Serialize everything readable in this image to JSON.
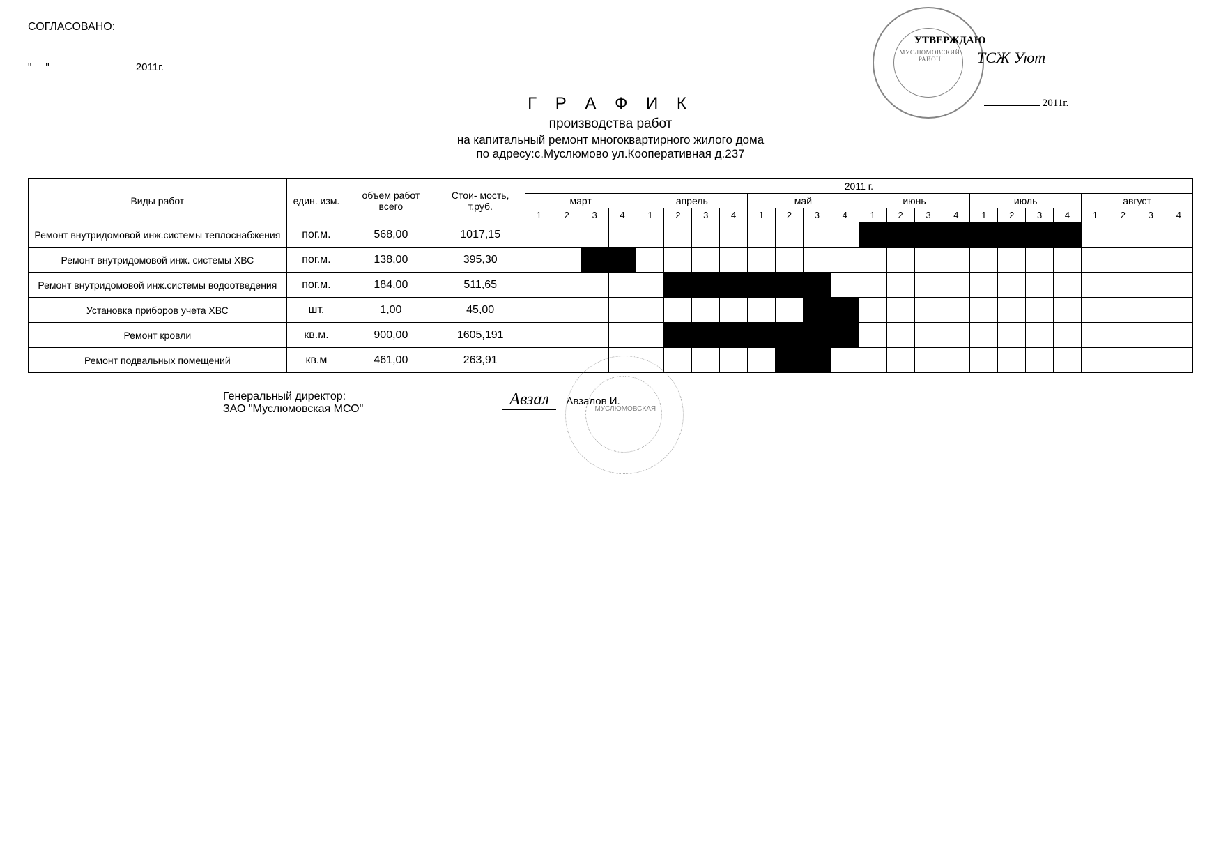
{
  "header": {
    "agree_label": "СОГЛАСОВАНО:",
    "year_suffix": "2011г.",
    "approve_label": "УТВЕРЖДАЮ",
    "stamp_top_text": "МУСЛЮМОВСКИЙ РАЙОН",
    "signature_scribble": "ТСЖ Уют",
    "approve_year": "2011г."
  },
  "title": {
    "main": "Г Р А Ф И К",
    "sub": "производства работ",
    "line1": "на капитальный ремонт многоквартирного жилого дома",
    "line2": "по адресу:с.Муслюмово ул.Кооперативная д.237"
  },
  "table": {
    "col_work": "Виды работ",
    "col_unit": "един. изм.",
    "col_vol": "объем работ всего",
    "col_cost": "Стои-\nмость, т.руб.",
    "year_header": "2011 г.",
    "months": [
      "март",
      "апрель",
      "май",
      "июнь",
      "июль",
      "август"
    ],
    "weeks": [
      "1",
      "2",
      "3",
      "4"
    ],
    "rows": [
      {
        "name": "Ремонт внутридомовой инж.системы теплоснабжения",
        "unit": "пог.м.",
        "vol": "568,00",
        "cost": "1017,15",
        "fill": [
          0,
          0,
          0,
          0,
          0,
          0,
          0,
          0,
          0,
          0,
          0,
          0,
          1,
          1,
          1,
          1,
          1,
          1,
          1,
          1,
          0,
          0,
          0,
          0
        ]
      },
      {
        "name": "Ремонт внутридомовой инж. системы ХВС",
        "unit": "пог.м.",
        "vol": "138,00",
        "cost": "395,30",
        "fill": [
          0,
          0,
          1,
          1,
          0,
          0,
          0,
          0,
          0,
          0,
          0,
          0,
          0,
          0,
          0,
          0,
          0,
          0,
          0,
          0,
          0,
          0,
          0,
          0
        ]
      },
      {
        "name": "Ремонт внутридомовой инж.системы водоотведения",
        "unit": "пог.м.",
        "vol": "184,00",
        "cost": "511,65",
        "fill": [
          0,
          0,
          0,
          0,
          0,
          1,
          1,
          1,
          1,
          1,
          1,
          0,
          0,
          0,
          0,
          0,
          0,
          0,
          0,
          0,
          0,
          0,
          0,
          0
        ]
      },
      {
        "name": "Установка приборов учета ХВС",
        "unit": "шт.",
        "vol": "1,00",
        "cost": "45,00",
        "fill": [
          0,
          0,
          0,
          0,
          0,
          0,
          0,
          0,
          0,
          0,
          1,
          1,
          0,
          0,
          0,
          0,
          0,
          0,
          0,
          0,
          0,
          0,
          0,
          0
        ]
      },
      {
        "name": "Ремонт  кровли",
        "unit": "кв.м.",
        "vol": "900,00",
        "cost": "1605,191",
        "fill": [
          0,
          0,
          0,
          0,
          0,
          1,
          1,
          1,
          1,
          1,
          1,
          1,
          0,
          0,
          0,
          0,
          0,
          0,
          0,
          0,
          0,
          0,
          0,
          0
        ]
      },
      {
        "name": "Ремонт подвальных помещений",
        "unit": "кв.м",
        "vol": "461,00",
        "cost": "263,91",
        "fill": [
          0,
          0,
          0,
          0,
          0,
          0,
          0,
          0,
          0,
          1,
          1,
          0,
          0,
          0,
          0,
          0,
          0,
          0,
          0,
          0,
          0,
          0,
          0,
          0
        ]
      }
    ]
  },
  "footer": {
    "director_label": "Генеральный директор:",
    "company": "ЗАО \"Муслюмовская МСО\"",
    "stamp_text": "МУСЛЮМОВСКАЯ",
    "sig_name": "Авзалов И.",
    "sig_scribble": "Авзал"
  }
}
